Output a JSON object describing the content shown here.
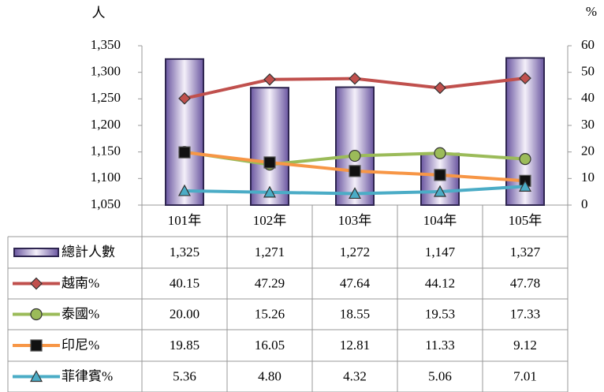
{
  "chart_data": {
    "type": "bar",
    "y_label": "人",
    "y2_label": "%",
    "categories": [
      "101年",
      "102年",
      "103年",
      "104年",
      "105年"
    ],
    "ylim": [
      1050,
      1350
    ],
    "yticks": [
      {
        "value": 1050,
        "label": "1,050"
      },
      {
        "value": 1100,
        "label": "1,100"
      },
      {
        "value": 1150,
        "label": "1,150"
      },
      {
        "value": 1200,
        "label": "1,200"
      },
      {
        "value": 1250,
        "label": "1,250"
      },
      {
        "value": 1300,
        "label": "1,300"
      },
      {
        "value": 1350,
        "label": "1,350"
      }
    ],
    "y2lim": [
      0,
      60
    ],
    "y2ticks": [
      0,
      10,
      20,
      30,
      40,
      50,
      60
    ],
    "series": [
      {
        "name": "總計人數",
        "type": "bar",
        "color": "#5b4a8b",
        "values": [
          1325,
          1271,
          1272,
          1147,
          1327
        ],
        "value_labels": [
          "1,325",
          "1,271",
          "1,272",
          "1,147",
          "1,327"
        ]
      },
      {
        "name": "越南%",
        "type": "line",
        "axis": "y2",
        "marker": "diamond",
        "color": "#c0504d",
        "marker_color": "#c0504d",
        "values": [
          40.15,
          47.29,
          47.64,
          44.12,
          47.78
        ],
        "value_labels": [
          "40.15",
          "47.29",
          "47.64",
          "44.12",
          "47.78"
        ]
      },
      {
        "name": "泰國%",
        "type": "line",
        "axis": "y2",
        "marker": "circle",
        "color": "#9bbb59",
        "marker_color": "#9bbb59",
        "values": [
          20.0,
          15.26,
          18.55,
          19.53,
          17.33
        ],
        "value_labels": [
          "20.00",
          "15.26",
          "18.55",
          "19.53",
          "17.33"
        ]
      },
      {
        "name": "印尼%",
        "type": "line",
        "axis": "y2",
        "marker": "square",
        "color": "#f79646",
        "marker_color": "#111111",
        "values": [
          19.85,
          16.05,
          12.81,
          11.33,
          9.12
        ],
        "value_labels": [
          "19.85",
          "16.05",
          "12.81",
          "11.33",
          "9.12"
        ]
      },
      {
        "name": "菲律賓%",
        "type": "line",
        "axis": "y2",
        "marker": "triangle",
        "color": "#4bacc6",
        "marker_color": "#4bacc6",
        "values": [
          5.36,
          4.8,
          4.32,
          5.06,
          7.01
        ],
        "value_labels": [
          "5.36",
          "4.80",
          "4.32",
          "5.06",
          "7.01"
        ]
      }
    ]
  }
}
